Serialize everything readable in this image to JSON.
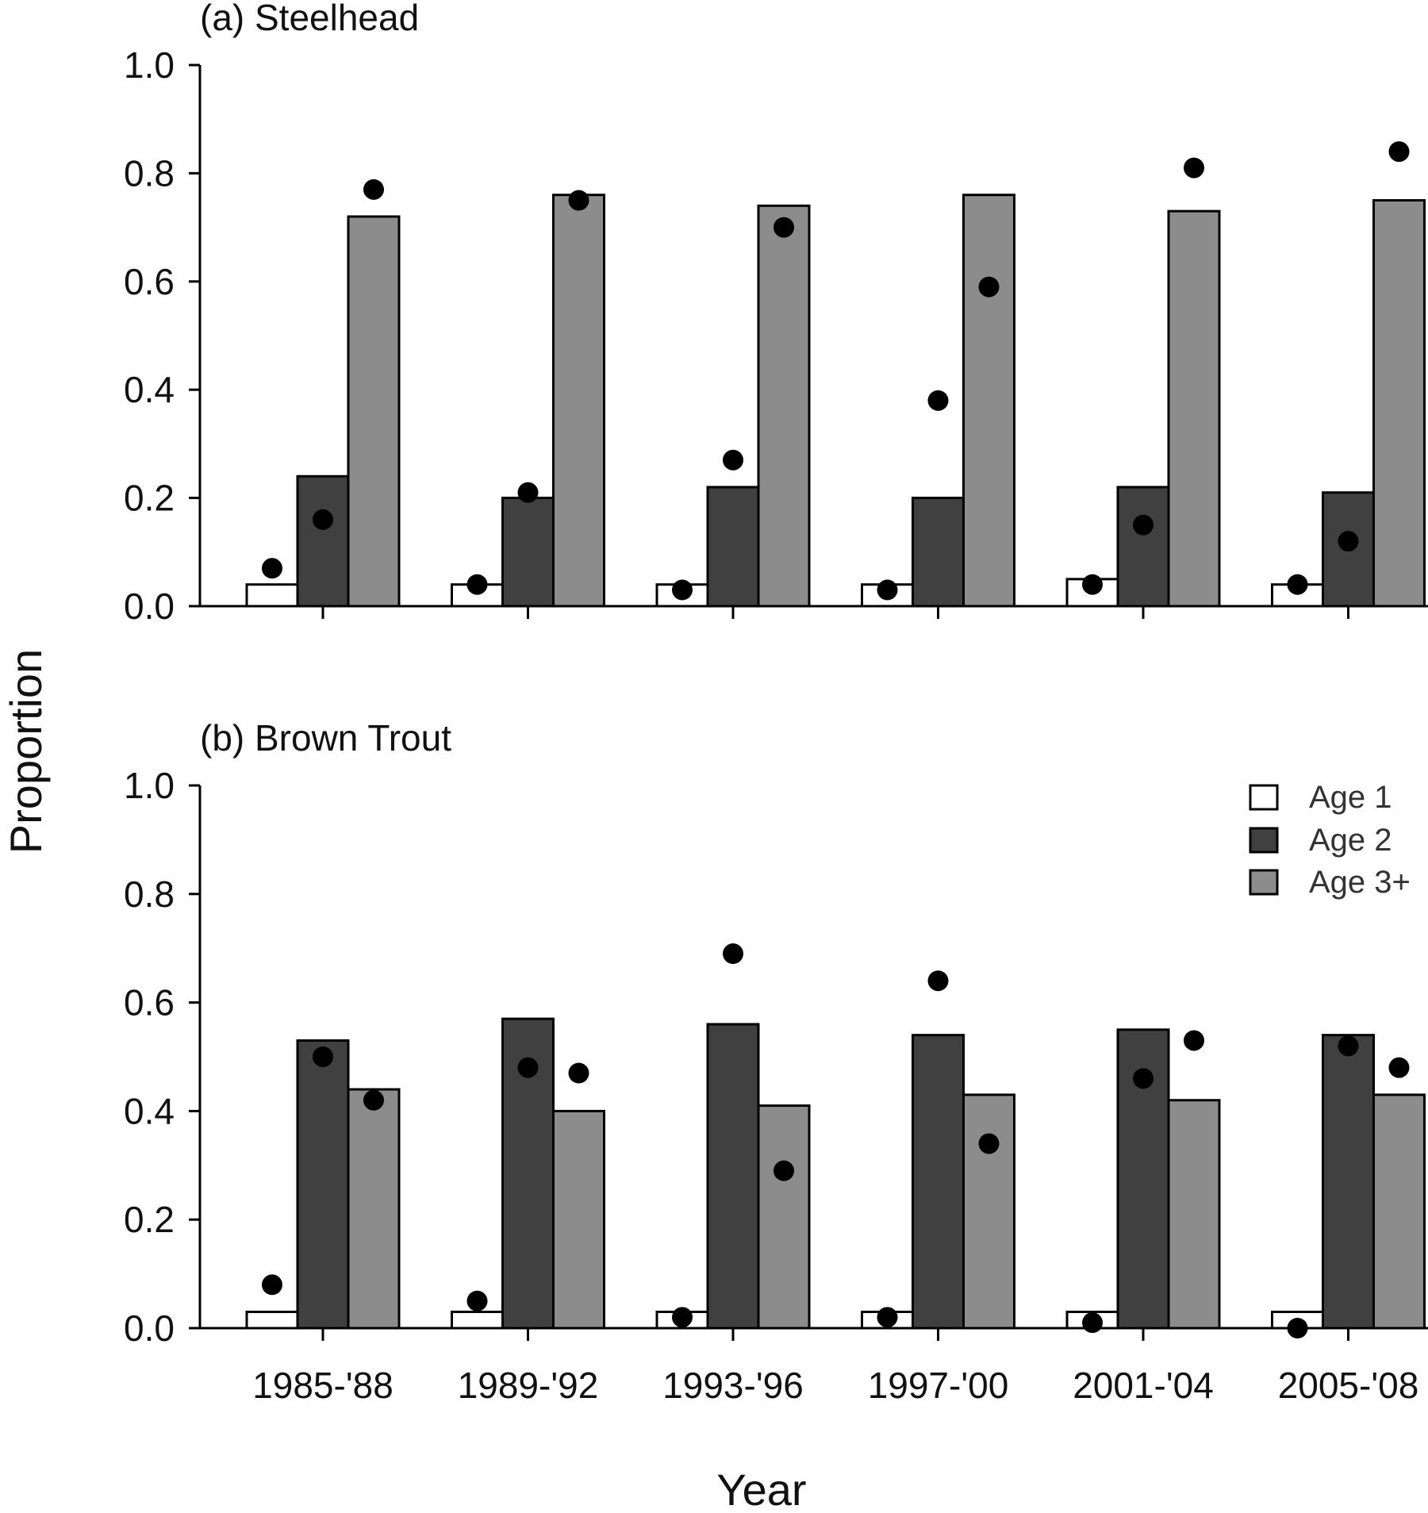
{
  "chart_data": [
    {
      "type": "bar",
      "panel_title": "(a) Steelhead",
      "categories": [
        "1985-'88",
        "1989-'92",
        "1993-'96",
        "1997-'00",
        "2001-'04",
        "2005-'08"
      ],
      "series": [
        {
          "name": "Age 1",
          "color": "#ffffff",
          "values": [
            0.04,
            0.04,
            0.04,
            0.04,
            0.05,
            0.04
          ]
        },
        {
          "name": "Age 2",
          "color": "#404040",
          "values": [
            0.24,
            0.2,
            0.22,
            0.2,
            0.22,
            0.21
          ]
        },
        {
          "name": "Age 3+",
          "color": "#8c8c8c",
          "values": [
            0.72,
            0.76,
            0.74,
            0.76,
            0.73,
            0.75
          ]
        }
      ],
      "points": [
        {
          "series": "Age 1",
          "values": [
            0.07,
            0.04,
            0.03,
            0.03,
            0.04,
            0.04
          ]
        },
        {
          "series": "Age 2",
          "values": [
            0.16,
            0.21,
            0.27,
            0.38,
            0.15,
            0.12
          ]
        },
        {
          "series": "Age 3+",
          "values": [
            0.77,
            0.75,
            0.7,
            0.59,
            0.81,
            0.84
          ]
        }
      ],
      "ylim": [
        0,
        1.0
      ],
      "yticks": [
        "0.0",
        "0.2",
        "0.4",
        "0.6",
        "0.8",
        "1.0"
      ],
      "show_xtick_labels": false
    },
    {
      "type": "bar",
      "panel_title": "(b) Brown Trout",
      "categories": [
        "1985-'88",
        "1989-'92",
        "1993-'96",
        "1997-'00",
        "2001-'04",
        "2005-'08"
      ],
      "series": [
        {
          "name": "Age 1",
          "color": "#ffffff",
          "values": [
            0.03,
            0.03,
            0.03,
            0.03,
            0.03,
            0.03
          ]
        },
        {
          "name": "Age 2",
          "color": "#404040",
          "values": [
            0.53,
            0.57,
            0.56,
            0.54,
            0.55,
            0.54
          ]
        },
        {
          "name": "Age 3+",
          "color": "#8c8c8c",
          "values": [
            0.44,
            0.4,
            0.41,
            0.43,
            0.42,
            0.43
          ]
        }
      ],
      "points": [
        {
          "series": "Age 1",
          "values": [
            0.08,
            0.05,
            0.02,
            0.02,
            0.01,
            0.0
          ]
        },
        {
          "series": "Age 2",
          "values": [
            0.5,
            0.48,
            0.69,
            0.64,
            0.46,
            0.52
          ]
        },
        {
          "series": "Age 3+",
          "values": [
            0.42,
            0.47,
            0.29,
            0.34,
            0.53,
            0.48
          ]
        }
      ],
      "ylim": [
        0,
        1.0
      ],
      "yticks": [
        "0.0",
        "0.2",
        "0.4",
        "0.6",
        "0.8",
        "1.0"
      ],
      "show_xtick_labels": true
    }
  ],
  "legend": {
    "placement": "top-right of panel (b)",
    "items": [
      {
        "label": "Age 1",
        "color": "#ffffff"
      },
      {
        "label": "Age 2",
        "color": "#404040"
      },
      {
        "label": "Age 3+",
        "color": "#8c8c8c"
      }
    ]
  },
  "axes": {
    "ylabel": "Proportion",
    "xlabel": "Year"
  }
}
